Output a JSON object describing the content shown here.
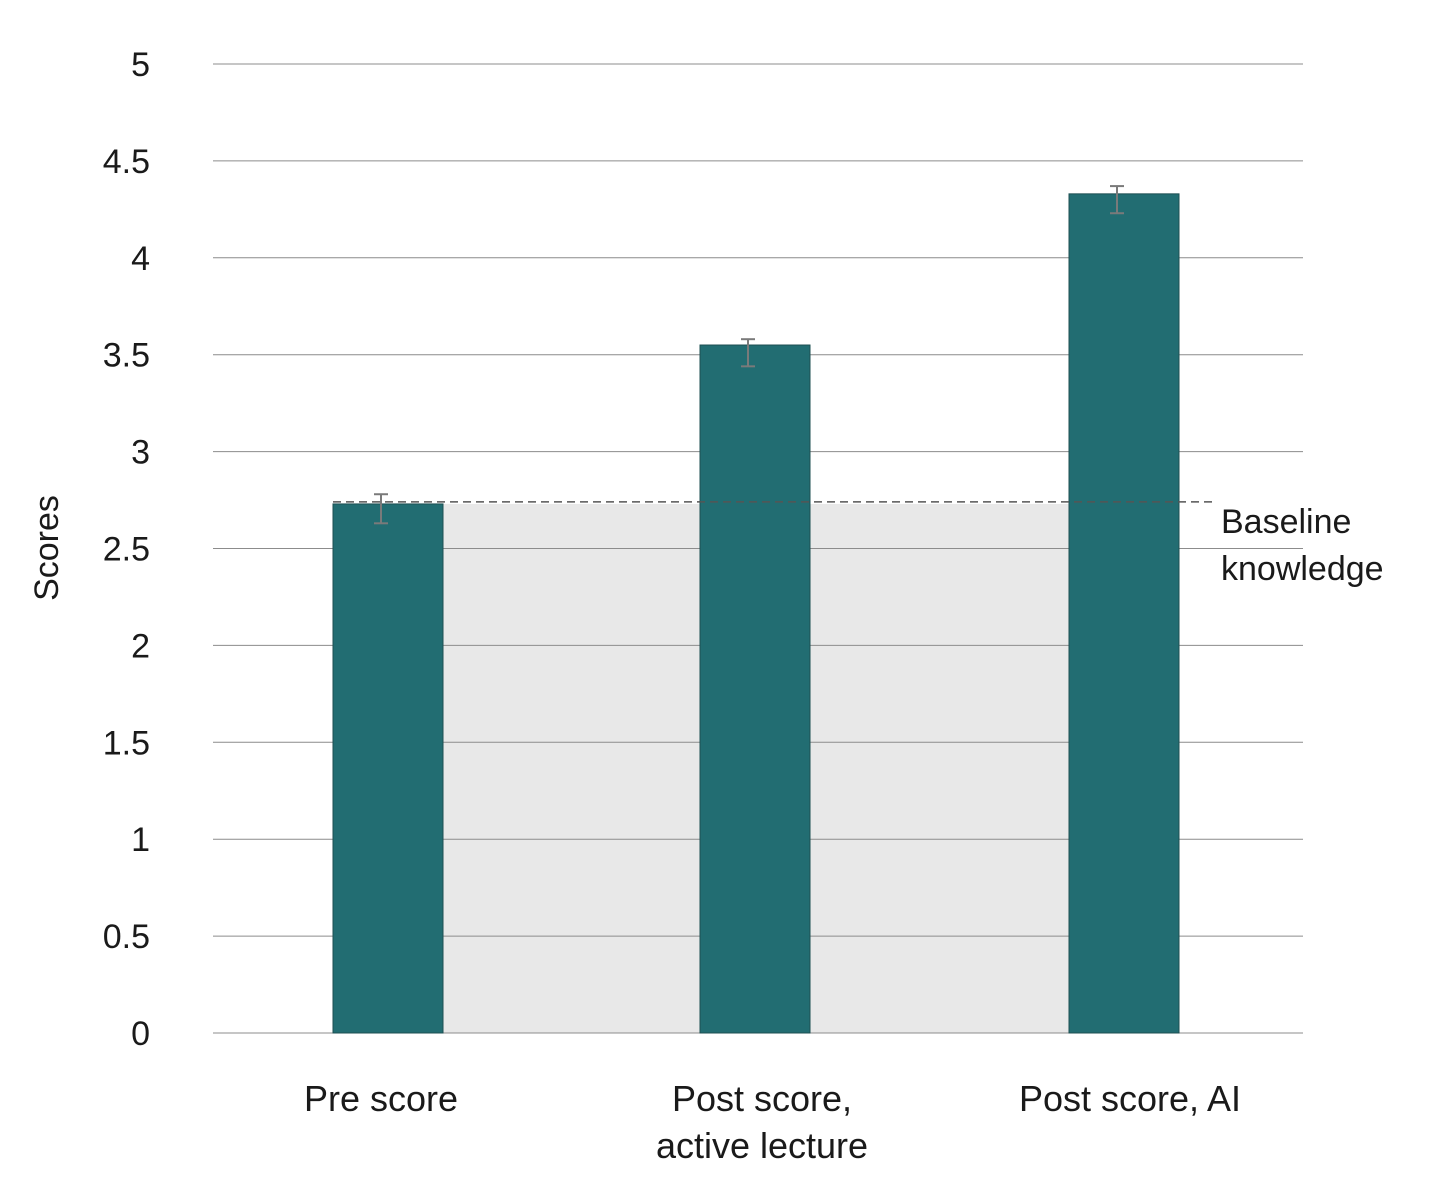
{
  "chart_data": {
    "type": "bar",
    "title": "",
    "xlabel": "",
    "ylabel": "Scores",
    "ylim": [
      0,
      5
    ],
    "yticks": [
      "0",
      "0.5",
      "1",
      "1.5",
      "2",
      "2.5",
      "3",
      "3.5",
      "4",
      "4.5",
      "5"
    ],
    "categories": [
      {
        "lines": [
          "Pre score"
        ]
      },
      {
        "lines": [
          "Post score,",
          "active lecture"
        ]
      },
      {
        "lines": [
          "Post score, AI"
        ]
      }
    ],
    "values": [
      2.73,
      3.55,
      4.33
    ],
    "errors": [
      {
        "low": 2.63,
        "high": 2.78
      },
      {
        "low": 3.44,
        "high": 3.58
      },
      {
        "low": 4.23,
        "high": 4.37
      }
    ],
    "baseline": {
      "value": 2.73,
      "label_lines": [
        "Baseline",
        "knowledge"
      ]
    },
    "grid": true,
    "colors": {
      "bar": "#226d72",
      "shade": "#e8e8e8",
      "grid": "#8c8c8c",
      "error": "#7a7a7a",
      "baseline": "#555555"
    }
  }
}
